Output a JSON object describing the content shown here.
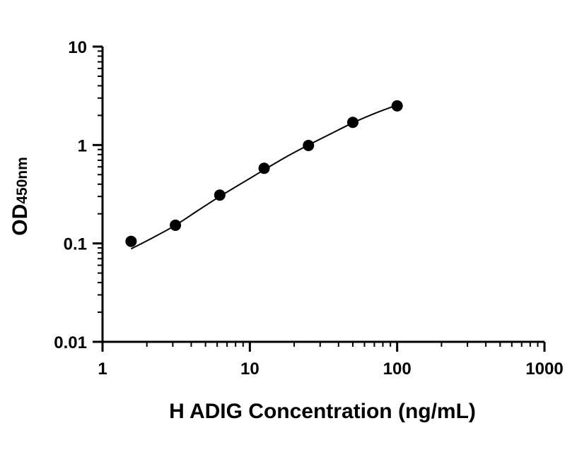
{
  "chart_data": {
    "type": "scatter",
    "x_scale": "log",
    "y_scale": "log",
    "xlabel": "H ADIG Concentration (ng/mL)",
    "ylabel": {
      "main": "OD",
      "subscript": "450nm"
    },
    "xlim": [
      1,
      1000
    ],
    "ylim": [
      0.01,
      10
    ],
    "x_ticks": [
      {
        "value": 1,
        "label": "1"
      },
      {
        "value": 10,
        "label": "10"
      },
      {
        "value": 100,
        "label": "100"
      },
      {
        "value": 1000,
        "label": "1000"
      }
    ],
    "y_ticks": [
      {
        "value": 0.01,
        "label": "0.01"
      },
      {
        "value": 0.1,
        "label": "0.1"
      },
      {
        "value": 1,
        "label": "1"
      },
      {
        "value": 10,
        "label": "10"
      }
    ],
    "grid": false,
    "series": [
      {
        "points": [
          {
            "x": 1.5625,
            "y": 0.105
          },
          {
            "x": 3.125,
            "y": 0.153
          },
          {
            "x": 6.25,
            "y": 0.31
          },
          {
            "x": 12.5,
            "y": 0.58
          },
          {
            "x": 25,
            "y": 0.99
          },
          {
            "x": 50,
            "y": 1.7
          },
          {
            "x": 100,
            "y": 2.5
          }
        ],
        "fit_curve": {
          "type": "4PL",
          "x_range": [
            1.5625,
            100
          ],
          "points": [
            {
              "x": 1.5625,
              "y": 0.088
            },
            {
              "x": 2.21,
              "y": 0.115
            },
            {
              "x": 3.125,
              "y": 0.153
            },
            {
              "x": 4.42,
              "y": 0.215
            },
            {
              "x": 6.25,
              "y": 0.3
            },
            {
              "x": 8.84,
              "y": 0.41
            },
            {
              "x": 12.5,
              "y": 0.56
            },
            {
              "x": 17.7,
              "y": 0.76
            },
            {
              "x": 25,
              "y": 1.0
            },
            {
              "x": 35.4,
              "y": 1.3
            },
            {
              "x": 50,
              "y": 1.68
            },
            {
              "x": 70.7,
              "y": 2.1
            },
            {
              "x": 100,
              "y": 2.55
            }
          ]
        }
      }
    ]
  }
}
